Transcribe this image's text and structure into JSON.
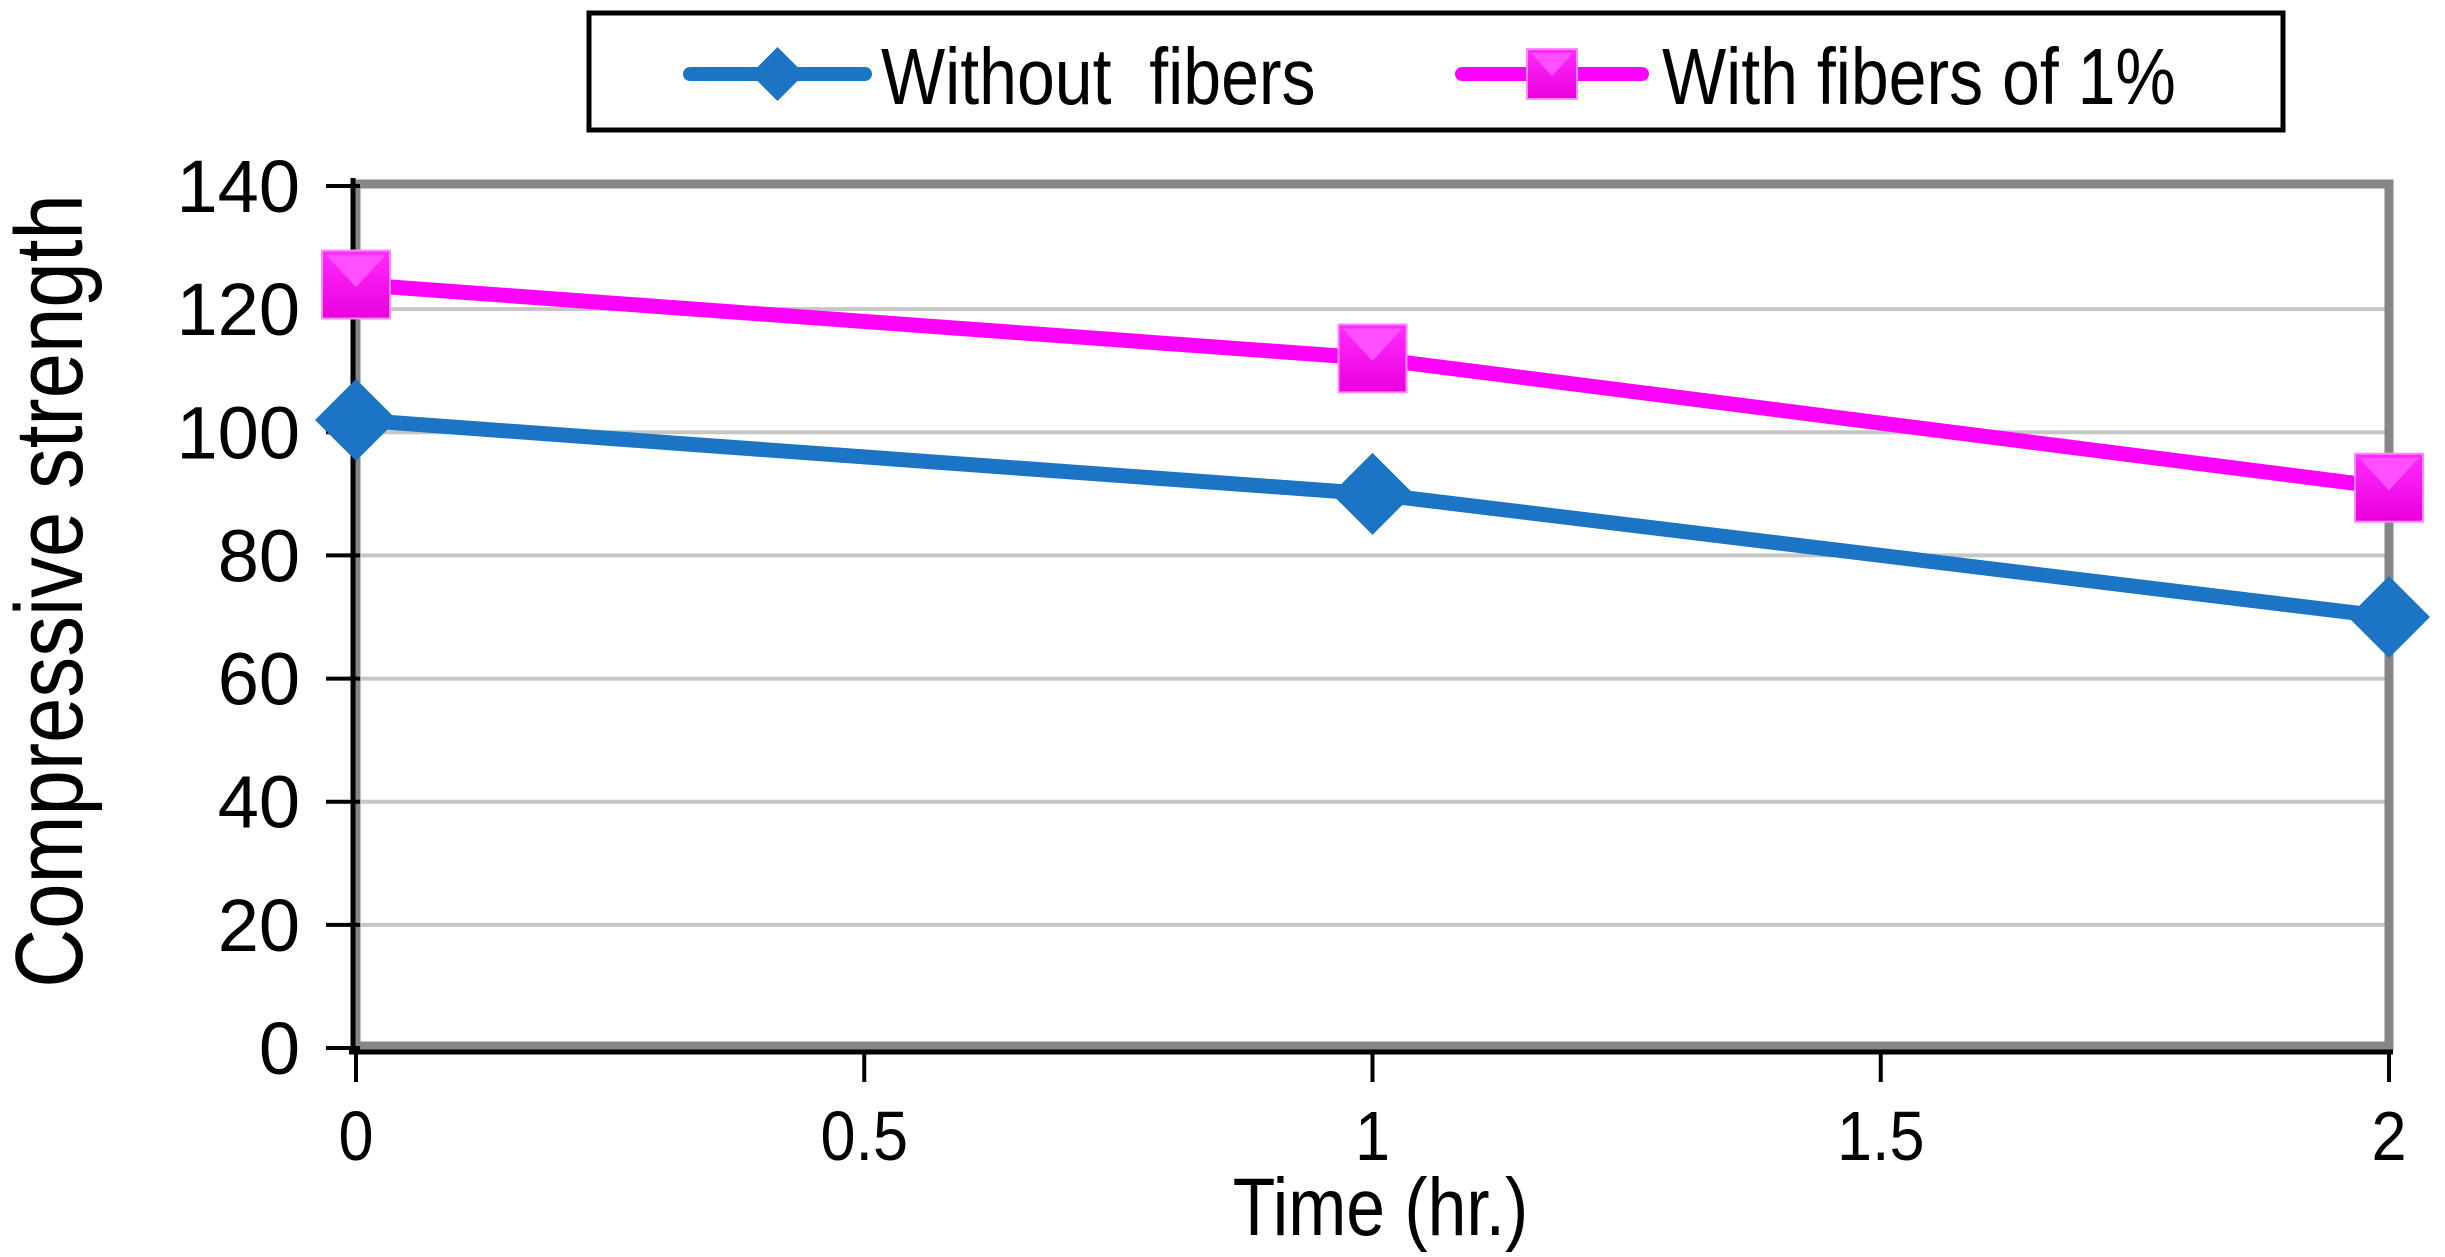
{
  "chart_data": {
    "type": "line",
    "title": "",
    "xlabel": "Time (hr.)",
    "ylabel": "Compressive strength",
    "x": [
      0,
      1,
      2
    ],
    "xlim": [
      0,
      2
    ],
    "ylim": [
      0,
      140
    ],
    "x_tick_values": [
      0,
      0.5,
      1,
      1.5,
      2
    ],
    "x_tick_labels": [
      "0",
      "0.5",
      "1",
      "1.5",
      "2"
    ],
    "y_tick_values": [
      0,
      20,
      40,
      60,
      80,
      100,
      120,
      140
    ],
    "y_tick_labels": [
      "0",
      "20",
      "40",
      "60",
      "80",
      "100",
      "120",
      "140"
    ],
    "grid": "horizontal",
    "legend_position": "top",
    "series": [
      {
        "name": "Without  fibers",
        "marker": "diamond",
        "color": "#1C74C4",
        "values": [
          102,
          90,
          70
        ]
      },
      {
        "name": "With fibers of 1%",
        "marker": "square",
        "color": "#FF00FF",
        "values": [
          124,
          112,
          91
        ]
      }
    ],
    "colors": {
      "background": "#FFFFFF",
      "plot_border": "#868686",
      "gridline": "#C6C6C6",
      "axis": "#000000",
      "legend_border": "#000000",
      "square_marker_bevel": "#FF4FFF",
      "square_marker_dark": "#E900DC"
    }
  }
}
